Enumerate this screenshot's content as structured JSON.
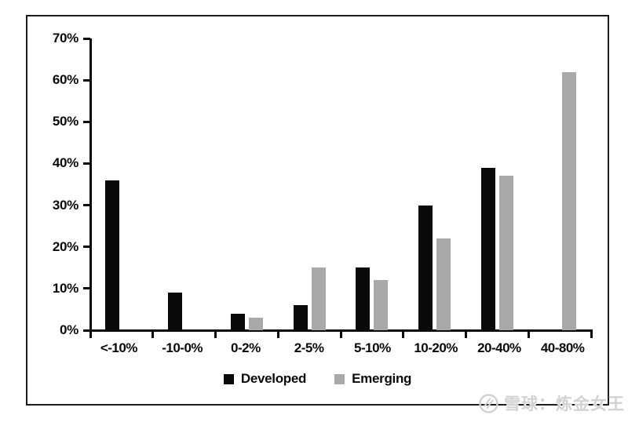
{
  "watermark": {
    "text": "雪球：炼金女王"
  },
  "chart_data": {
    "type": "bar",
    "title": "",
    "xlabel": "",
    "ylabel": "",
    "categories": [
      "<-10%",
      "-10-0%",
      "0-2%",
      "2-5%",
      "5-10%",
      "10-20%",
      "20-40%",
      "40-80%"
    ],
    "series": [
      {
        "name": "Developed",
        "color": "#0a0a0a",
        "values": [
          36,
          9,
          4,
          6,
          15,
          30,
          39,
          0
        ]
      },
      {
        "name": "Emerging",
        "color": "#a9a9a9",
        "values": [
          0,
          0,
          3,
          15,
          12,
          22,
          37,
          62
        ]
      }
    ],
    "ylim": [
      0,
      70
    ],
    "ytick_step": 10,
    "ytick_labels": [
      "0%",
      "10%",
      "20%",
      "30%",
      "40%",
      "50%",
      "60%",
      "70%"
    ],
    "grid": false,
    "legend_position": "bottom-center",
    "colors": {
      "axis": "#0a0a0a",
      "frame_border": "#1c1c1c",
      "watermark": "#d2d2d2"
    }
  }
}
